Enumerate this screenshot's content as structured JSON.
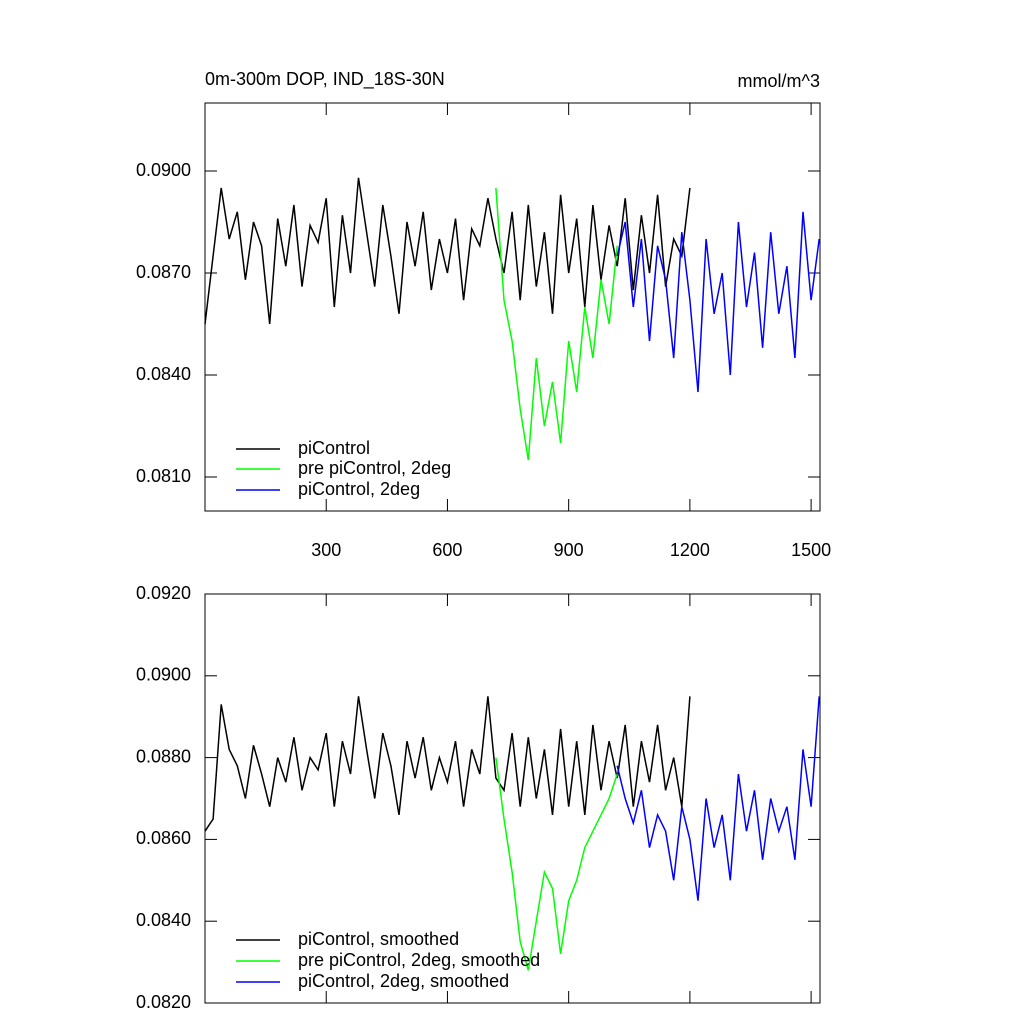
{
  "chart_data": [
    {
      "type": "line",
      "title": "0m-300m DOP, IND_18S-30N",
      "units": "mmol/m^3",
      "xlim": [
        0,
        1522
      ],
      "xticks": [
        300,
        600,
        900,
        1200,
        1500
      ],
      "xtick_labels": true,
      "ylim": [
        0.08,
        0.092
      ],
      "yticks": [
        {
          "value": 0.081,
          "label": "0.0810"
        },
        {
          "value": 0.084,
          "label": "0.0840"
        },
        {
          "value": 0.087,
          "label": "0.0870"
        },
        {
          "value": 0.09,
          "label": "0.0900"
        }
      ],
      "series": [
        {
          "name": "piControl",
          "color": "#000000",
          "x": [
            0,
            20,
            40,
            60,
            80,
            100,
            120,
            140,
            160,
            180,
            200,
            220,
            240,
            260,
            280,
            300,
            320,
            340,
            360,
            380,
            400,
            420,
            440,
            460,
            480,
            500,
            520,
            540,
            560,
            580,
            600,
            620,
            640,
            660,
            680,
            700,
            720,
            740,
            760,
            780,
            800,
            820,
            840,
            860,
            880,
            900,
            920,
            940,
            960,
            980,
            1000,
            1020,
            1040,
            1060,
            1080,
            1100,
            1120,
            1140,
            1160,
            1180,
            1200
          ],
          "values": [
            0.0855,
            0.0875,
            0.0895,
            0.088,
            0.0888,
            0.0868,
            0.0885,
            0.0878,
            0.0855,
            0.0886,
            0.0872,
            0.089,
            0.0866,
            0.0884,
            0.0879,
            0.0892,
            0.086,
            0.0887,
            0.087,
            0.0898,
            0.0882,
            0.0866,
            0.089,
            0.0875,
            0.0858,
            0.0885,
            0.0872,
            0.0888,
            0.0865,
            0.088,
            0.087,
            0.0886,
            0.0862,
            0.0883,
            0.0878,
            0.0892,
            0.088,
            0.087,
            0.0888,
            0.0862,
            0.089,
            0.0866,
            0.0882,
            0.0858,
            0.0893,
            0.087,
            0.0886,
            0.086,
            0.089,
            0.0868,
            0.0884,
            0.0872,
            0.0892,
            0.0865,
            0.0887,
            0.087,
            0.0893,
            0.0866,
            0.088,
            0.0875,
            0.0895
          ]
        },
        {
          "name": "pre piControl, 2deg",
          "color": "#00ff00",
          "x": [
            720,
            740,
            760,
            780,
            800,
            820,
            840,
            860,
            880,
            900,
            920,
            940,
            960,
            980,
            1000,
            1020
          ],
          "values": [
            0.0895,
            0.0862,
            0.085,
            0.083,
            0.0815,
            0.0845,
            0.0825,
            0.0838,
            0.082,
            0.085,
            0.0835,
            0.086,
            0.0845,
            0.0868,
            0.0855,
            0.0878
          ]
        },
        {
          "name": "piControl, 2deg",
          "color": "#0000ff",
          "x": [
            1020,
            1040,
            1060,
            1080,
            1100,
            1120,
            1140,
            1160,
            1180,
            1200,
            1220,
            1240,
            1260,
            1280,
            1300,
            1320,
            1340,
            1360,
            1380,
            1400,
            1420,
            1440,
            1460,
            1480,
            1500,
            1520
          ],
          "values": [
            0.0875,
            0.0885,
            0.086,
            0.088,
            0.085,
            0.0878,
            0.0868,
            0.0845,
            0.0882,
            0.0862,
            0.0835,
            0.088,
            0.0858,
            0.087,
            0.084,
            0.0885,
            0.086,
            0.0876,
            0.0848,
            0.0882,
            0.0858,
            0.0872,
            0.0845,
            0.0888,
            0.0862,
            0.088
          ]
        }
      ]
    },
    {
      "type": "line",
      "xlim": [
        0,
        1522
      ],
      "xticks": [
        300,
        600,
        900,
        1200,
        1500
      ],
      "xtick_labels": false,
      "ylim": [
        0.082,
        0.092
      ],
      "yticks": [
        {
          "value": 0.082,
          "label": "0.0820"
        },
        {
          "value": 0.084,
          "label": "0.0840"
        },
        {
          "value": 0.086,
          "label": "0.0860"
        },
        {
          "value": 0.088,
          "label": "0.0880"
        },
        {
          "value": 0.09,
          "label": "0.0900"
        },
        {
          "value": 0.092,
          "label": "0.0920"
        }
      ],
      "series": [
        {
          "name": "piControl, smoothed",
          "color": "#000000",
          "x": [
            0,
            20,
            40,
            60,
            80,
            100,
            120,
            140,
            160,
            180,
            200,
            220,
            240,
            260,
            280,
            300,
            320,
            340,
            360,
            380,
            400,
            420,
            440,
            460,
            480,
            500,
            520,
            540,
            560,
            580,
            600,
            620,
            640,
            660,
            680,
            700,
            720,
            740,
            760,
            780,
            800,
            820,
            840,
            860,
            880,
            900,
            920,
            940,
            960,
            980,
            1000,
            1020,
            1040,
            1060,
            1080,
            1100,
            1120,
            1140,
            1160,
            1180,
            1200
          ],
          "values": [
            0.0862,
            0.0865,
            0.0893,
            0.0882,
            0.0878,
            0.087,
            0.0883,
            0.0876,
            0.0868,
            0.088,
            0.0874,
            0.0885,
            0.0872,
            0.088,
            0.0877,
            0.0886,
            0.0868,
            0.0884,
            0.0876,
            0.0895,
            0.0882,
            0.087,
            0.0886,
            0.0878,
            0.0866,
            0.0884,
            0.0875,
            0.0885,
            0.0872,
            0.088,
            0.0874,
            0.0884,
            0.0868,
            0.0882,
            0.0876,
            0.0895,
            0.0875,
            0.0872,
            0.0886,
            0.0868,
            0.0885,
            0.087,
            0.0882,
            0.0866,
            0.0887,
            0.0868,
            0.0884,
            0.0866,
            0.0888,
            0.0872,
            0.0884,
            0.0875,
            0.0888,
            0.0868,
            0.0884,
            0.0874,
            0.0888,
            0.0872,
            0.088,
            0.0868,
            0.0895
          ]
        },
        {
          "name": "pre piControl, 2deg, smoothed",
          "color": "#00ff00",
          "x": [
            720,
            740,
            760,
            780,
            800,
            820,
            840,
            860,
            880,
            900,
            920,
            940,
            960,
            980,
            1000,
            1020
          ],
          "values": [
            0.088,
            0.0865,
            0.0852,
            0.0835,
            0.0828,
            0.084,
            0.0852,
            0.0848,
            0.0832,
            0.0845,
            0.085,
            0.0858,
            0.0862,
            0.0866,
            0.087,
            0.0876
          ]
        },
        {
          "name": "piControl, 2deg, smoothed",
          "color": "#0000ff",
          "x": [
            1020,
            1040,
            1060,
            1080,
            1100,
            1120,
            1140,
            1160,
            1180,
            1200,
            1220,
            1240,
            1260,
            1280,
            1300,
            1320,
            1340,
            1360,
            1380,
            1400,
            1420,
            1440,
            1460,
            1480,
            1500,
            1520
          ],
          "values": [
            0.0878,
            0.087,
            0.0864,
            0.0872,
            0.0858,
            0.0866,
            0.0862,
            0.085,
            0.0868,
            0.086,
            0.0845,
            0.087,
            0.0858,
            0.0866,
            0.085,
            0.0876,
            0.0862,
            0.0872,
            0.0855,
            0.087,
            0.0862,
            0.0868,
            0.0855,
            0.0882,
            0.0868,
            0.0895
          ]
        }
      ]
    }
  ]
}
